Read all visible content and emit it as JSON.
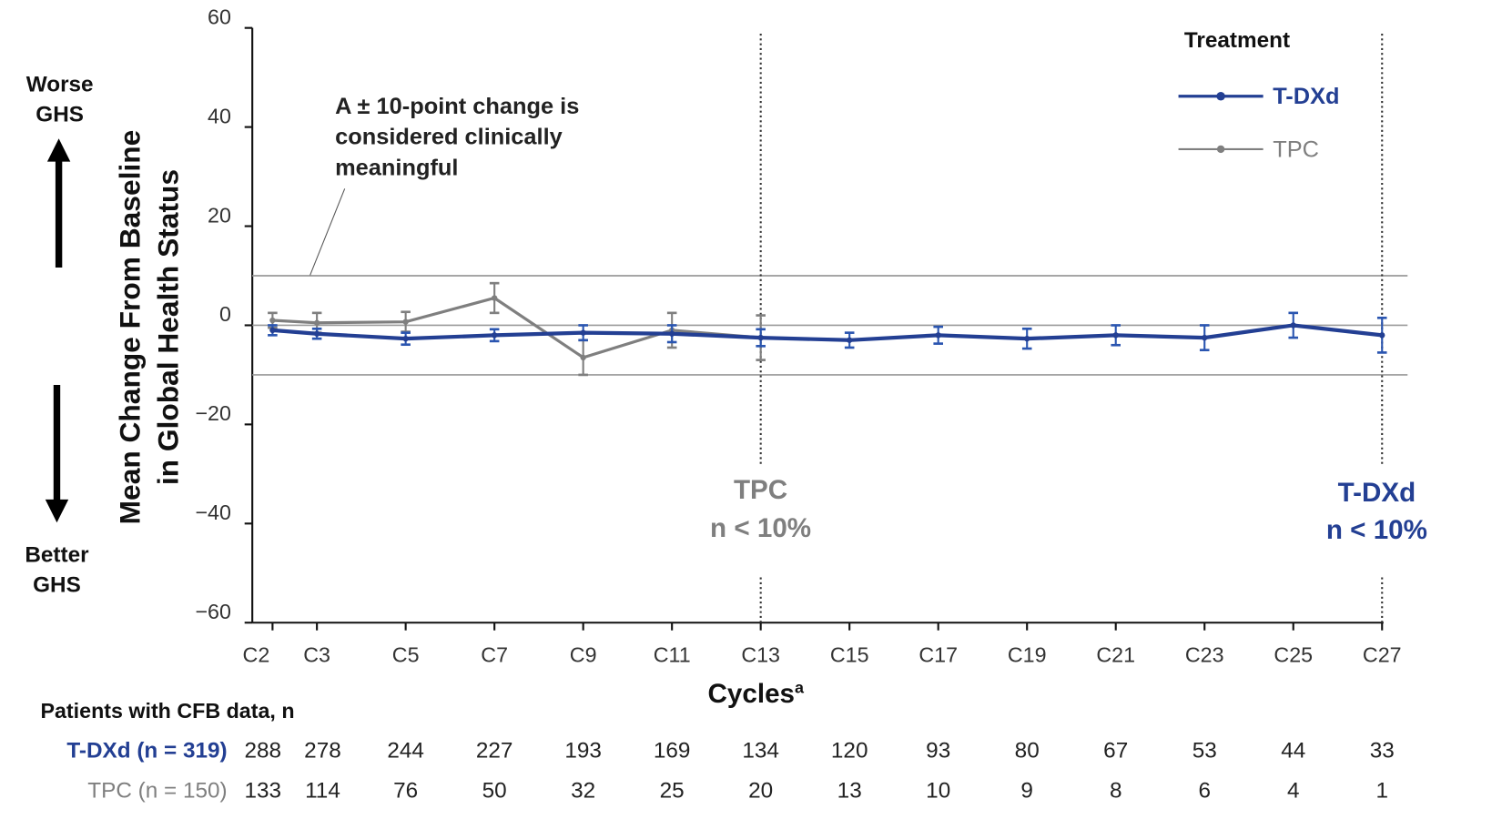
{
  "chart_data": {
    "type": "line",
    "ylabel": [
      "Mean Change From Baseline",
      "in Global Health Status"
    ],
    "xlabel": "Cycles",
    "xlabel_superscript": "a",
    "ylim": [
      -60,
      60
    ],
    "yticks": [
      "60",
      "40",
      "20",
      "0",
      "−20",
      "−40",
      "−60"
    ],
    "ytick_values": [
      60,
      40,
      20,
      0,
      -20,
      -40,
      -60
    ],
    "categories": [
      "C2",
      "C3",
      "C5",
      "C7",
      "C9",
      "C11",
      "C13",
      "C15",
      "C17",
      "C19",
      "C21",
      "C23",
      "C25",
      "C27"
    ],
    "cycle_numbers": [
      2,
      3,
      5,
      7,
      9,
      11,
      13,
      15,
      17,
      19,
      21,
      23,
      25,
      27
    ],
    "reference_lines": [
      10,
      0,
      -10
    ],
    "legend": {
      "title": "Treatment",
      "position": "top-right"
    },
    "series": [
      {
        "name": "T-DXd",
        "color": "#233f93",
        "values": [
          -1,
          -1.7,
          -2.7,
          -2,
          -1.5,
          -1.7,
          -2.5,
          -3,
          -2,
          -2.7,
          -2,
          -2.5,
          0,
          -2
        ],
        "errors": [
          1,
          1,
          1.2,
          1.2,
          1.5,
          1.7,
          1.7,
          1.5,
          1.7,
          2,
          2,
          2.5,
          2.5,
          3.5
        ]
      },
      {
        "name": "TPC",
        "color": "#7f7f7f",
        "values": [
          1,
          0.5,
          0.7,
          5.5,
          -6.5,
          -1,
          -2.5,
          null,
          null,
          null,
          null,
          null,
          null,
          null
        ],
        "errors": [
          1.5,
          2,
          2,
          3,
          3.5,
          3.5,
          4.5,
          null,
          null,
          null,
          null,
          null,
          null,
          null
        ]
      }
    ],
    "annotations": {
      "clinical": [
        "A ± 10-point change is",
        "considered clinically",
        "meaningful"
      ],
      "worse": [
        "Worse",
        "GHS"
      ],
      "better": [
        "Better",
        "GHS"
      ],
      "tpc_cutoff": {
        "label": "TPC",
        "note": "n < 10%",
        "at": "C13"
      },
      "tdxd_cutoff": {
        "label": "T-DXd",
        "note": "n < 10%",
        "at": "C27"
      }
    },
    "table": {
      "title": "Patients with CFB data, n",
      "rows": [
        {
          "label": "T-DXd (n = 319)",
          "color": "#233f93",
          "values": [
            "288",
            "278",
            "244",
            "227",
            "193",
            "169",
            "134",
            "120",
            "93",
            "80",
            "67",
            "53",
            "44",
            "33"
          ]
        },
        {
          "label": "TPC (n = 150)",
          "color": "#7f7f7f",
          "values": [
            "133",
            "114",
            "76",
            "50",
            "32",
            "25",
            "20",
            "13",
            "10",
            "9",
            "8",
            "6",
            "4",
            "1"
          ]
        }
      ]
    }
  }
}
